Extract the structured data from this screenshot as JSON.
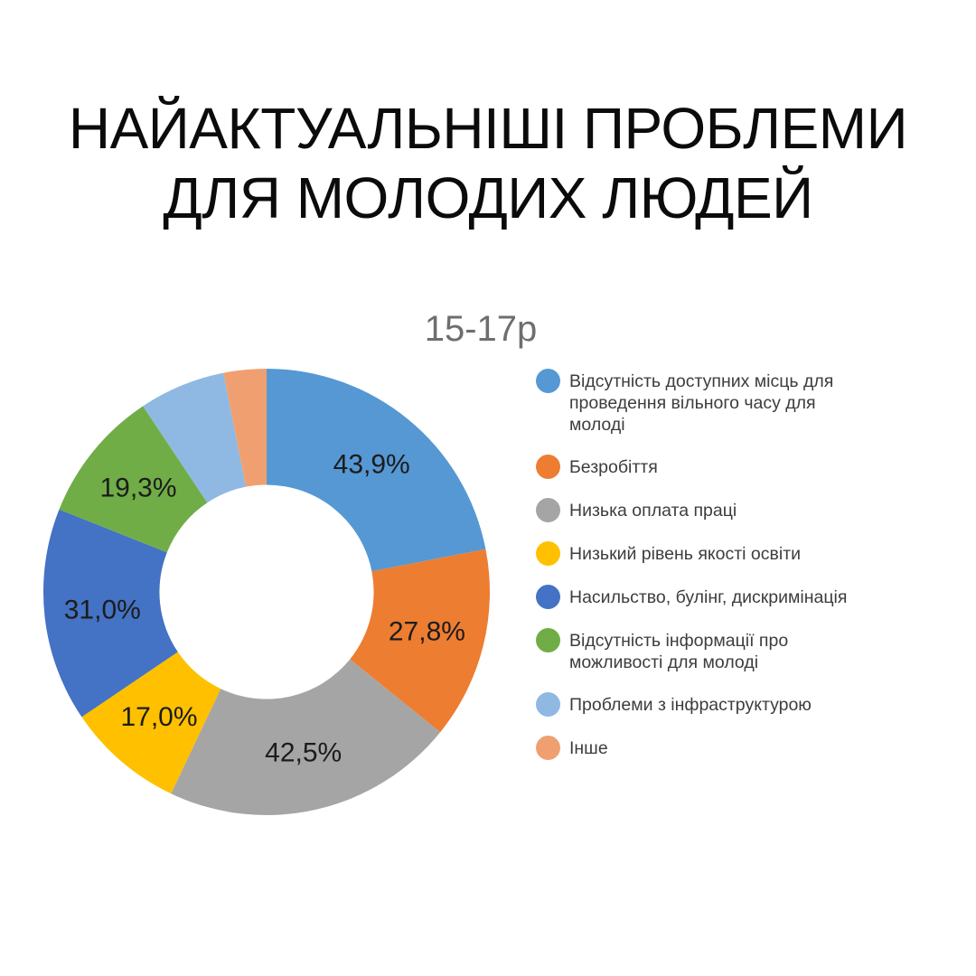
{
  "header": {
    "title_line1": "НАЙАКТУАЛЬНІШІ ПРОБЛЕМИ",
    "title_line2": "ДЛЯ МОЛОДИХ ЛЮДЕЙ"
  },
  "chart_data": {
    "type": "pie",
    "subtype": "donut",
    "title": "15-17р",
    "title_color": "#6e6e6e",
    "legend_position": "right",
    "hole_ratio": 0.48,
    "unit": "%",
    "note": "multi-select survey results; slice angles proportional to value/total",
    "slices": [
      {
        "legend_lines": [
          "Відсутність доступних місць для",
          "проведення вільного часу для",
          "молоді"
        ],
        "value": 43.9,
        "data_label": "43,9%",
        "color": "#5598D4"
      },
      {
        "legend_lines": [
          "Безробіття"
        ],
        "value": 27.8,
        "data_label": "27,8%",
        "color": "#ED7D31"
      },
      {
        "legend_lines": [
          "Низька оплата праці"
        ],
        "value": 42.5,
        "data_label": "42,5%",
        "color": "#A5A5A5"
      },
      {
        "legend_lines": [
          "Низький рівень якості освіти"
        ],
        "value": 17.0,
        "data_label": "17,0%",
        "color": "#FFC000"
      },
      {
        "legend_lines": [
          "Насильство, булінг, дискримінація"
        ],
        "value": 31.0,
        "data_label": "31,0%",
        "color": "#4472C4"
      },
      {
        "legend_lines": [
          "Відсутність інформації про",
          "можливості для молоді"
        ],
        "value": 19.3,
        "data_label": "19,3%",
        "color": "#70AD47"
      },
      {
        "legend_lines": [
          "Проблеми з інфраструктурою"
        ],
        "value": 12.5,
        "data_label": "",
        "estimated": true,
        "color": "#8FB9E3"
      },
      {
        "legend_lines": [
          "Інше"
        ],
        "value": 6.2,
        "data_label": "",
        "estimated": true,
        "color": "#F0A070"
      }
    ]
  }
}
